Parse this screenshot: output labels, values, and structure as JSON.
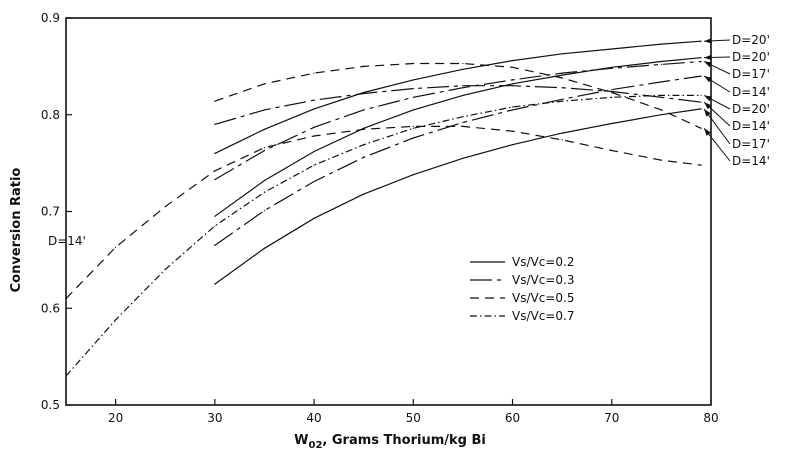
{
  "chart_data": {
    "type": "line",
    "xlabel": "W02, Grams Thorium/kg Bi",
    "xlabel_main": "W",
    "xlabel_sub": "02",
    "xlabel_rest": ", Grams Thorium/kg  Bi",
    "ylabel": "Conversion Ratio",
    "xlim": [
      15,
      80
    ],
    "ylim": [
      0.5,
      0.9
    ],
    "x_ticks": [
      20,
      30,
      40,
      50,
      60,
      70,
      80
    ],
    "y_ticks": [
      0.5,
      0.6,
      0.7,
      0.8,
      0.9
    ],
    "y_tick_labels": [
      "0.5",
      "0.6",
      "0.7",
      "0.8",
      "0.9"
    ],
    "grid": false,
    "legend_position": "center-right",
    "legend": [
      {
        "label": "Vs/Vc=0.2",
        "style": "solid"
      },
      {
        "label": "Vs/Vc=0.3",
        "style": "long-dash"
      },
      {
        "label": "Vs/Vc=0.5",
        "style": "dash"
      },
      {
        "label": "Vs/Vc=0.7",
        "style": "dash-dot"
      }
    ],
    "series": [
      {
        "vs_vc": "0.2",
        "style": "solid",
        "label": "D=20'",
        "x": [
          30,
          35,
          40,
          45,
          50,
          55,
          60,
          65,
          70,
          75,
          79
        ],
        "y": [
          0.76,
          0.785,
          0.806,
          0.823,
          0.836,
          0.847,
          0.856,
          0.863,
          0.868,
          0.873,
          0.876
        ]
      },
      {
        "vs_vc": "0.2",
        "style": "solid",
        "label": "D=17'",
        "x": [
          30,
          35,
          40,
          45,
          50,
          55,
          60,
          65,
          70,
          75,
          79
        ],
        "y": [
          0.695,
          0.732,
          0.762,
          0.786,
          0.805,
          0.82,
          0.832,
          0.841,
          0.849,
          0.855,
          0.859
        ]
      },
      {
        "vs_vc": "0.2",
        "style": "solid",
        "label": "D=14'",
        "x": [
          30,
          35,
          40,
          45,
          50,
          55,
          60,
          65,
          70,
          75,
          79
        ],
        "y": [
          0.625,
          0.662,
          0.693,
          0.718,
          0.738,
          0.755,
          0.769,
          0.781,
          0.791,
          0.8,
          0.806
        ]
      },
      {
        "vs_vc": "0.3",
        "style": "long-dash",
        "label": "D=20'",
        "x": [
          30,
          35,
          40,
          45,
          50,
          55,
          60,
          65,
          70,
          75,
          79
        ],
        "y": [
          0.79,
          0.805,
          0.815,
          0.822,
          0.827,
          0.83,
          0.83,
          0.828,
          0.824,
          0.818,
          0.813
        ]
      },
      {
        "vs_vc": "0.3",
        "style": "long-dash",
        "label": "D=20'",
        "x": [
          30,
          35,
          40,
          45,
          50,
          55,
          60,
          65,
          70,
          75,
          79
        ],
        "y": [
          0.733,
          0.763,
          0.787,
          0.805,
          0.818,
          0.828,
          0.836,
          0.843,
          0.848,
          0.852,
          0.855
        ]
      },
      {
        "vs_vc": "0.3",
        "style": "long-dash",
        "label": "D=14'",
        "x": [
          30,
          35,
          40,
          45,
          50,
          55,
          60,
          65,
          70,
          75,
          79
        ],
        "y": [
          0.665,
          0.701,
          0.731,
          0.756,
          0.776,
          0.792,
          0.805,
          0.816,
          0.826,
          0.834,
          0.84
        ]
      },
      {
        "vs_vc": "0.5",
        "style": "dash",
        "label": "D=17'",
        "x": [
          30,
          35,
          40,
          45,
          50,
          55,
          60,
          65,
          70,
          75,
          79
        ],
        "y": [
          0.814,
          0.832,
          0.843,
          0.85,
          0.853,
          0.853,
          0.849,
          0.838,
          0.823,
          0.805,
          0.786
        ]
      },
      {
        "vs_vc": "0.5",
        "style": "dash",
        "label": "D=14'",
        "x": [
          15,
          20,
          25,
          30,
          35,
          40,
          45,
          50,
          55,
          60,
          65,
          70,
          75,
          79
        ],
        "y": [
          0.61,
          0.663,
          0.705,
          0.742,
          0.766,
          0.778,
          0.785,
          0.788,
          0.788,
          0.783,
          0.774,
          0.763,
          0.753,
          0.748
        ]
      },
      {
        "vs_vc": "0.7",
        "style": "dash-dot",
        "label": "D=14'",
        "x": [
          15,
          20,
          25,
          30,
          35,
          40,
          45,
          50,
          55,
          60,
          65,
          70,
          75,
          79
        ],
        "y": [
          0.53,
          0.588,
          0.64,
          0.685,
          0.72,
          0.748,
          0.769,
          0.786,
          0.798,
          0.808,
          0.814,
          0.818,
          0.82,
          0.82
        ]
      }
    ],
    "right_labels": [
      "D=20'",
      "D=20'",
      "D=17'",
      "D=14'",
      "D=20'",
      "D=14'",
      "D=17'",
      "D=14'"
    ],
    "left_label": "D=14'"
  }
}
